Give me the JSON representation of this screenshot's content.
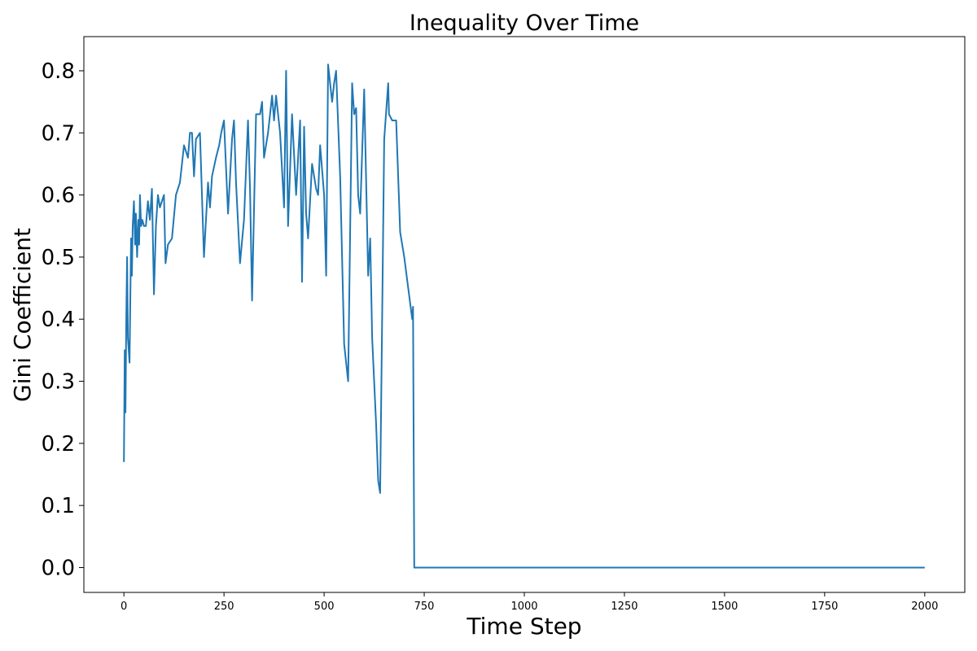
{
  "chart_data": {
    "type": "line",
    "title": "Inequality Over Time",
    "xlabel": "Time Step",
    "ylabel": "Gini Coefficient",
    "xlim": [
      -100,
      2100
    ],
    "ylim": [
      -0.04,
      0.855
    ],
    "xticks": [
      0,
      250,
      500,
      750,
      1000,
      1250,
      1500,
      1750,
      2000
    ],
    "xtick_labels": [
      "0",
      "250",
      "500",
      "750",
      "1000",
      "1250",
      "1500",
      "1750",
      "2000"
    ],
    "yticks": [
      0.0,
      0.1,
      0.2,
      0.3,
      0.4,
      0.5,
      0.6,
      0.7,
      0.8
    ],
    "ytick_labels": [
      "0.0",
      "0.1",
      "0.2",
      "0.3",
      "0.4",
      "0.5",
      "0.6",
      "0.7",
      "0.8"
    ],
    "grid": false,
    "legend": "none",
    "series": [
      {
        "color": "#1f77b4",
        "x": [
          0,
          2,
          4,
          6,
          8,
          10,
          14,
          18,
          20,
          22,
          25,
          28,
          30,
          33,
          36,
          38,
          40,
          43,
          46,
          50,
          55,
          60,
          65,
          70,
          75,
          80,
          85,
          90,
          95,
          100,
          104,
          110,
          120,
          130,
          140,
          150,
          160,
          165,
          170,
          175,
          180,
          190,
          200,
          210,
          215,
          220,
          230,
          238,
          243,
          250,
          260,
          270,
          275,
          280,
          290,
          300,
          310,
          315,
          320,
          330,
          340,
          345,
          350,
          360,
          370,
          375,
          380,
          390,
          400,
          405,
          410,
          420,
          430,
          440,
          445,
          450,
          455,
          460,
          470,
          480,
          485,
          490,
          500,
          505,
          510,
          520,
          525,
          530,
          540,
          550,
          560,
          570,
          575,
          580,
          585,
          590,
          600,
          610,
          615,
          620,
          630,
          635,
          640,
          650,
          660,
          662,
          670,
          680,
          690,
          700,
          710,
          720,
          722,
          725,
          730,
          740,
          750,
          752,
          760,
          770,
          780,
          790,
          795,
          800,
          805,
          806,
          2000
        ],
        "y": [
          0.17,
          0.35,
          0.25,
          0.4,
          0.5,
          0.37,
          0.33,
          0.53,
          0.47,
          0.55,
          0.59,
          0.52,
          0.57,
          0.5,
          0.56,
          0.52,
          0.6,
          0.55,
          0.56,
          0.55,
          0.55,
          0.59,
          0.56,
          0.61,
          0.44,
          0.55,
          0.6,
          0.58,
          0.59,
          0.6,
          0.49,
          0.52,
          0.53,
          0.6,
          0.62,
          0.68,
          0.66,
          0.7,
          0.7,
          0.63,
          0.69,
          0.7,
          0.5,
          0.62,
          0.58,
          0.63,
          0.66,
          0.68,
          0.7,
          0.72,
          0.57,
          0.69,
          0.72,
          0.62,
          0.49,
          0.56,
          0.72,
          0.61,
          0.43,
          0.73,
          0.73,
          0.75,
          0.66,
          0.7,
          0.76,
          0.72,
          0.76,
          0.7,
          0.58,
          0.8,
          0.55,
          0.73,
          0.6,
          0.72,
          0.46,
          0.71,
          0.57,
          0.53,
          0.65,
          0.61,
          0.6,
          0.68,
          0.6,
          0.47,
          0.81,
          0.75,
          0.78,
          0.8,
          0.63,
          0.36,
          0.3,
          0.78,
          0.73,
          0.74,
          0.6,
          0.57,
          0.77,
          0.47,
          0.53,
          0.37,
          0.23,
          0.14,
          0.12,
          0.69,
          0.78,
          0.73,
          0.72,
          0.72,
          0.54,
          0.5,
          0.45,
          0.4,
          0.42,
          0.0,
          0.0,
          0.0,
          0.0,
          0.0,
          0.0,
          0.0,
          0.0,
          0.0,
          0.0,
          0.0,
          0.0,
          0.0,
          0.0
        ]
      }
    ]
  }
}
